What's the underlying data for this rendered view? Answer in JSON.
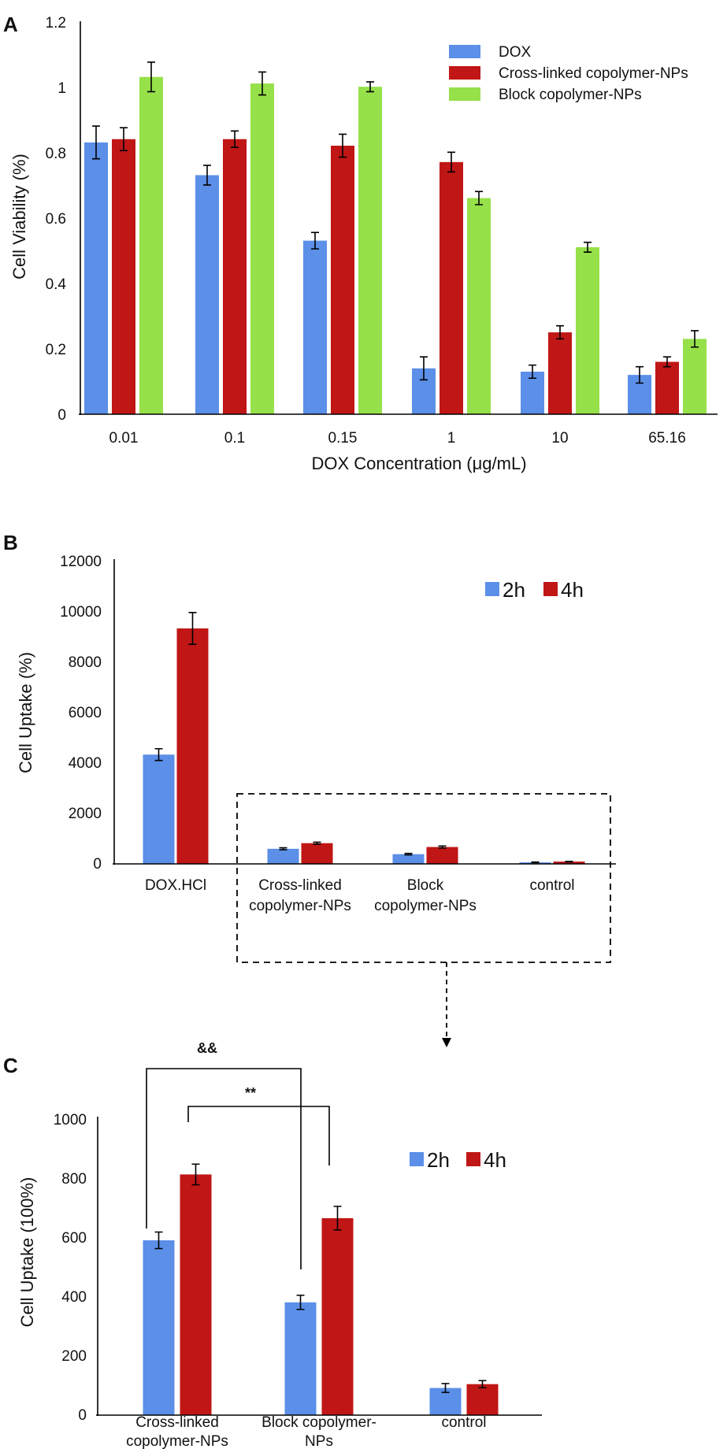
{
  "colors": {
    "blue": "#5b8fe8",
    "red": "#c01616",
    "green": "#96e04a"
  },
  "chart_data": [
    {
      "panel": "A",
      "type": "bar",
      "xlabel": "DOX Concentration (μg/mL)",
      "ylabel": "Cell Viability (%)",
      "ylim": [
        0,
        1.2
      ],
      "yticks": [
        "0",
        "0.2",
        "0.4",
        "0.6",
        "0.8",
        "1",
        "1.2"
      ],
      "categories": [
        "0.01",
        "0.1",
        "0.15",
        "1",
        "10",
        "65.16"
      ],
      "legend_position": "top-right",
      "series": [
        {
          "name": "DOX",
          "color": "blue",
          "values": [
            0.83,
            0.73,
            0.53,
            0.14,
            0.13,
            0.12
          ],
          "errors": [
            0.05,
            0.03,
            0.025,
            0.035,
            0.02,
            0.025
          ]
        },
        {
          "name": "Cross-linked copolymer-NPs",
          "color": "red",
          "values": [
            0.84,
            0.84,
            0.82,
            0.77,
            0.25,
            0.16
          ],
          "errors": [
            0.035,
            0.025,
            0.035,
            0.03,
            0.02,
            0.015
          ]
        },
        {
          "name": "Block copolymer-NPs",
          "color": "green",
          "values": [
            1.03,
            1.01,
            1.0,
            0.66,
            0.51,
            0.23
          ],
          "errors": [
            0.045,
            0.035,
            0.015,
            0.02,
            0.015,
            0.025
          ]
        }
      ]
    },
    {
      "panel": "B",
      "type": "bar",
      "xlabel": "",
      "ylabel": "Cell Uptake (%)",
      "ylim": [
        0,
        12000
      ],
      "yticks": [
        "0",
        "2000",
        "4000",
        "6000",
        "8000",
        "10000",
        "12000"
      ],
      "categories": [
        [
          "DOX.HCl"
        ],
        [
          "Cross-linked",
          "copolymer-NPs"
        ],
        [
          "Block",
          "copolymer-NPs"
        ],
        [
          "control"
        ]
      ],
      "legend_position": "top-right",
      "series": [
        {
          "name": "2h",
          "color": "blue",
          "values": [
            4270,
            590,
            380,
            60
          ],
          "errors": [
            230,
            40,
            30,
            10
          ]
        },
        {
          "name": "4h",
          "color": "red",
          "values": [
            9200,
            810,
            660,
            90
          ],
          "errors": [
            620,
            40,
            40,
            10
          ]
        }
      ]
    },
    {
      "panel": "C",
      "type": "bar",
      "xlabel": "",
      "ylabel": "Cell Uptake (100%)",
      "ylim": [
        0,
        1000
      ],
      "yticks": [
        "0",
        "200",
        "400",
        "600",
        "800",
        "1000"
      ],
      "categories": [
        [
          "Cross-linked",
          "copolymer-NPs"
        ],
        [
          "Block copolymer-",
          "NPs"
        ],
        [
          "control"
        ]
      ],
      "legend_position": "top-right",
      "annotations": [
        "&&",
        "**"
      ],
      "series": [
        {
          "name": "2h",
          "color": "blue",
          "values": [
            592,
            382,
            92
          ],
          "errors": [
            28,
            24,
            15
          ]
        },
        {
          "name": "4h",
          "color": "red",
          "values": [
            815,
            667,
            105
          ],
          "errors": [
            35,
            40,
            12
          ]
        }
      ]
    }
  ]
}
